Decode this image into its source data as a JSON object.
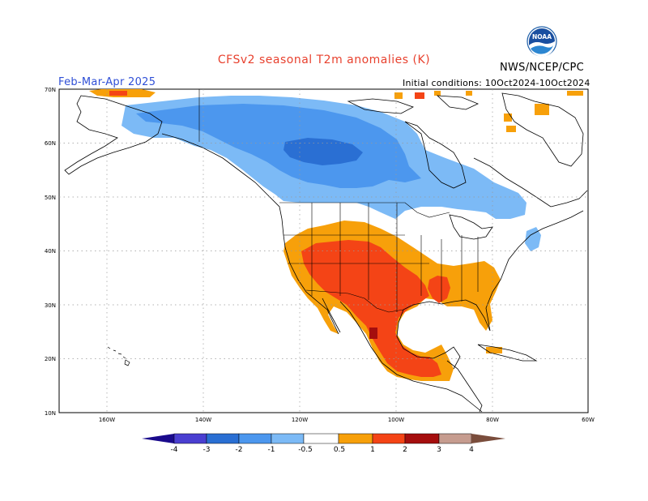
{
  "title": "CFSv2 seasonal T2m anomalies (K)",
  "season": "Feb-Mar-Apr 2025",
  "initial_conditions": "Initial conditions: 10Oct2024-10Oct2024",
  "agency": "NWS/NCEP/CPC",
  "logo_text": "NOAA",
  "map": {
    "lat_labels": [
      "70N",
      "60N",
      "50N",
      "40N",
      "30N",
      "20N",
      "10N"
    ],
    "lon_labels": [
      "160W",
      "140W",
      "120W",
      "100W",
      "80W",
      "60W"
    ]
  },
  "colorbar": {
    "labels": [
      "-4",
      "-3",
      "-2",
      "-1",
      "-0.5",
      "0.5",
      "1",
      "2",
      "3",
      "4"
    ],
    "colors": {
      "lt_m4": "#1a0a8c",
      "m4_m3": "#4a3fd1",
      "m3_m2": "#2a6fd3",
      "m2_m1": "#4c97ee",
      "m1_m05": "#7cbaf6",
      "neutral": "#ffffff",
      "p05_p1": "#f7a00a",
      "p1_p2": "#f44416",
      "p2_p3": "#a50e0e",
      "p3_p4": "#c69c8f",
      "gt_p4": "#7a4d3c"
    }
  }
}
